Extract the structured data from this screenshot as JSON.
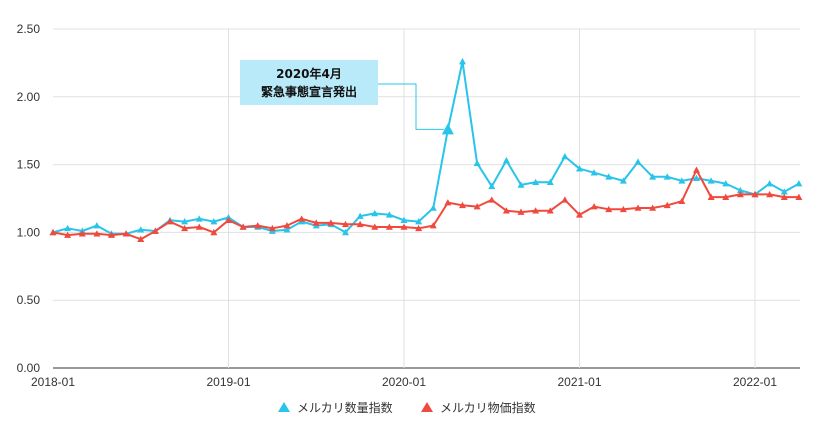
{
  "chart_data": {
    "type": "line",
    "title": "",
    "xlabel": "",
    "ylabel": "",
    "ylim": [
      0,
      2.5
    ],
    "yticks": [
      "0.00",
      "0.50",
      "1.00",
      "1.50",
      "2.00",
      "2.50"
    ],
    "xticks": [
      "2018-01",
      "2019-01",
      "2020-01",
      "2021-01",
      "2022-01"
    ],
    "x_start": "2018-01",
    "x_months": 52,
    "grid": true,
    "legend_position": "bottom",
    "series": [
      {
        "name": "メルカリ数量指数",
        "color": "#29c4ea",
        "marker": "triangle",
        "values": [
          1.0,
          1.03,
          1.01,
          1.05,
          0.99,
          0.99,
          1.02,
          1.01,
          1.09,
          1.08,
          1.1,
          1.08,
          1.11,
          1.04,
          1.04,
          1.01,
          1.02,
          1.08,
          1.05,
          1.06,
          1.0,
          1.12,
          1.14,
          1.13,
          1.09,
          1.08,
          1.18,
          1.76,
          2.26,
          1.51,
          1.34,
          1.53,
          1.35,
          1.37,
          1.37,
          1.56,
          1.47,
          1.44,
          1.41,
          1.38,
          1.52,
          1.41,
          1.41,
          1.38,
          1.4,
          1.38,
          1.36,
          1.31,
          1.28,
          1.36,
          1.3,
          1.36
        ]
      },
      {
        "name": "メルカリ物価指数",
        "color": "#f04a3e",
        "marker": "triangle",
        "values": [
          1.0,
          0.98,
          0.99,
          0.99,
          0.98,
          0.99,
          0.95,
          1.01,
          1.08,
          1.03,
          1.04,
          1.0,
          1.09,
          1.04,
          1.05,
          1.03,
          1.05,
          1.1,
          1.07,
          1.07,
          1.06,
          1.06,
          1.04,
          1.04,
          1.04,
          1.03,
          1.05,
          1.22,
          1.2,
          1.19,
          1.24,
          1.16,
          1.15,
          1.16,
          1.16,
          1.24,
          1.13,
          1.19,
          1.17,
          1.17,
          1.18,
          1.18,
          1.2,
          1.23,
          1.46,
          1.26,
          1.26,
          1.28,
          1.28,
          1.28,
          1.26,
          1.26
        ]
      }
    ],
    "annotation": {
      "line1": "2020年4月",
      "line2": "緊急事態宣言発出",
      "box_color": "#b9eaf9",
      "target_series": 0,
      "target_index": 27
    }
  }
}
